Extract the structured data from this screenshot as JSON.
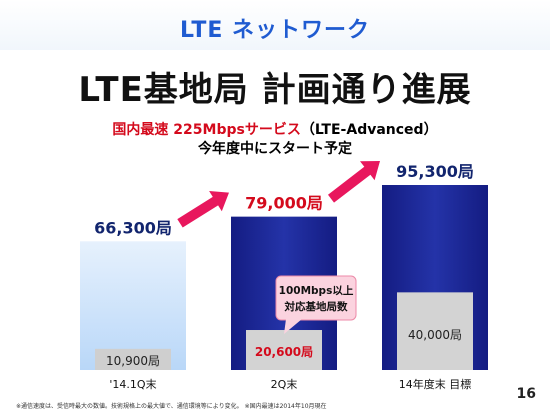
{
  "header": {
    "title": "LTE ネットワーク"
  },
  "main_title": "LTE基地局 計画通り進展",
  "subtitle": {
    "line1_part1": "国内最速 225Mbpsサービス",
    "line1_part2": "（LTE-Advanced）",
    "line2": "今年度中にスタート予定"
  },
  "chart_data": {
    "type": "bar",
    "title": "",
    "xlabel": "",
    "ylabel": "",
    "categories": [
      "'14.1Q末",
      "2Q末",
      "14年度末 目標"
    ],
    "series": [
      {
        "values": [
          66300,
          79000,
          95300
        ]
      },
      {
        "values": [
          10900,
          20600,
          40000
        ]
      }
    ],
    "total_labels": [
      "66,300局",
      "79,000局",
      "95,300局"
    ],
    "sub_labels": [
      "10,900局",
      "20,600局",
      "40,000局"
    ],
    "callout": {
      "line1": "100Mbps以上",
      "line2": "対応基地局数"
    },
    "ylim": [
      0,
      95300
    ],
    "grid": false,
    "legend": "none",
    "colors": {
      "bar_first": "#cfe3fb",
      "bar_main": "#1f2a9c",
      "sub_bar": "#d3d3d3",
      "sub_bar_light": "#cfcfcf",
      "highlight_text": "#d40a1c",
      "total_text_blue": "#12256e",
      "arrow": "#e8175d",
      "callout_bg": "#fbd3df",
      "callout_border": "#ec8aa8"
    }
  },
  "footnote": "※通信速度は、受信時最大の数値。技術規格上の最大値で、通信環境等により変化。 ※国内最速は2014年10月現在",
  "page_number": "16"
}
